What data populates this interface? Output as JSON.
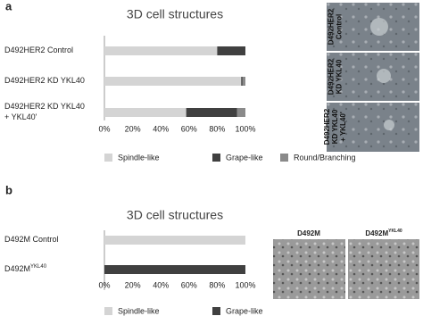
{
  "panels": [
    "a",
    "b"
  ],
  "chart_data": [
    {
      "type": "stacked-bar-horizontal",
      "title": "3D cell structures",
      "categories": [
        "D492HER2 Control",
        "D492HER2 KD YKL40",
        "D492HER2 KD YKL40\n+ YKL40'"
      ],
      "series": [
        {
          "name": "Spindle-like",
          "color": "#d4d4d4",
          "values": [
            80,
            97,
            58
          ]
        },
        {
          "name": "Grape-like",
          "color": "#404040",
          "values": [
            20,
            1,
            36
          ]
        },
        {
          "name": "Round/Branching",
          "color": "#8a8a8a",
          "values": [
            0,
            2,
            6
          ]
        }
      ],
      "xlim": [
        0,
        100
      ],
      "xticks": [
        {
          "value": 0,
          "label": "0%"
        },
        {
          "value": 20,
          "label": "20%"
        },
        {
          "value": 40,
          "label": "40%"
        },
        {
          "value": 60,
          "label": "60%"
        },
        {
          "value": 80,
          "label": "80%"
        },
        {
          "value": 100,
          "label": "100%"
        }
      ],
      "legend": "bottom"
    },
    {
      "type": "stacked-bar-horizontal",
      "title": "3D cell structures",
      "categories": [
        "D492M Control",
        "D492M"
      ],
      "category_superscripts": [
        null,
        "YKL40"
      ],
      "series": [
        {
          "name": "Spindle-like",
          "color": "#d4d4d4",
          "values": [
            100,
            0
          ]
        },
        {
          "name": "Grape-like",
          "color": "#404040",
          "values": [
            0,
            100
          ]
        }
      ],
      "xlim": [
        0,
        100
      ],
      "xticks": [
        {
          "value": 0,
          "label": "0%"
        },
        {
          "value": 20,
          "label": "20%"
        },
        {
          "value": 40,
          "label": "40%"
        },
        {
          "value": 60,
          "label": "60%"
        },
        {
          "value": 80,
          "label": "80%"
        },
        {
          "value": 100,
          "label": "100%"
        }
      ],
      "legend": "bottom"
    }
  ],
  "images_a": [
    "D492HER2\nControl",
    "D492HER2\nKD YKL40",
    "D492HER2\nKD YKL40\n+ YKL40'"
  ],
  "images_b": [
    {
      "text": "D492M",
      "sup": null
    },
    {
      "text": "D492M",
      "sup": "YKL40"
    }
  ]
}
